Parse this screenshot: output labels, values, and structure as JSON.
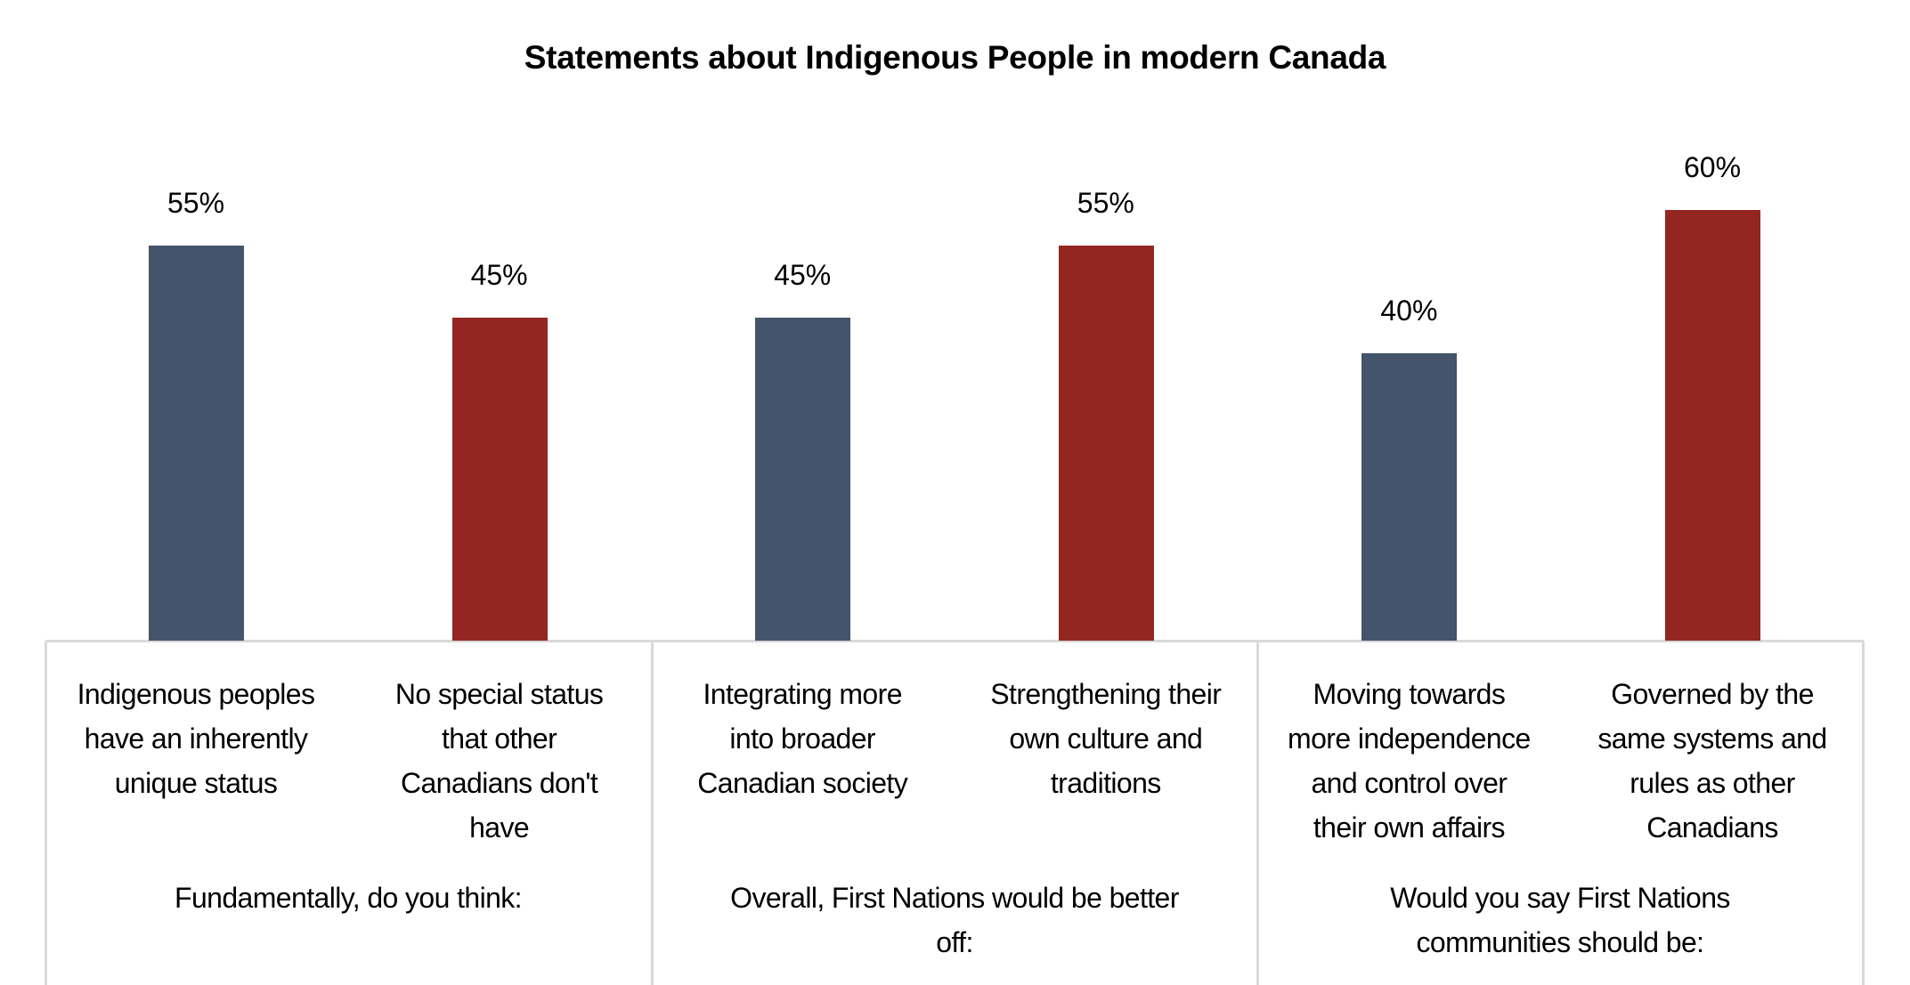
{
  "chart_data": {
    "type": "bar",
    "title": "Statements about Indigenous People in modern Canada",
    "xlabel": "",
    "ylabel": "",
    "ylim": [
      0,
      60
    ],
    "grid": false,
    "categories": [
      [
        "Indigenous peoples",
        "have an inherently",
        "unique status"
      ],
      [
        "No special status",
        "that other",
        "Canadians don't",
        "have"
      ],
      [
        "Integrating more",
        "into broader",
        "Canadian society"
      ],
      [
        "Strengthening their",
        "own culture and",
        "traditions"
      ],
      [
        "Moving towards",
        "more independence",
        "and control over",
        "their own affairs"
      ],
      [
        "Governed by the",
        "same systems and",
        "rules as other",
        "Canadians"
      ]
    ],
    "values": [
      55,
      45,
      45,
      55,
      40,
      60
    ],
    "data_labels": [
      "55%",
      "45%",
      "45%",
      "55%",
      "40%",
      "60%"
    ],
    "bar_colors": [
      "#44546A",
      "#942622",
      "#44546A",
      "#942622",
      "#44546A",
      "#942622"
    ],
    "groups": [
      [
        "Fundamentally, do you think:"
      ],
      [
        "Overall, First Nations would be better",
        "off:"
      ],
      [
        "Would you say First Nations",
        "communities should be:"
      ]
    ]
  }
}
